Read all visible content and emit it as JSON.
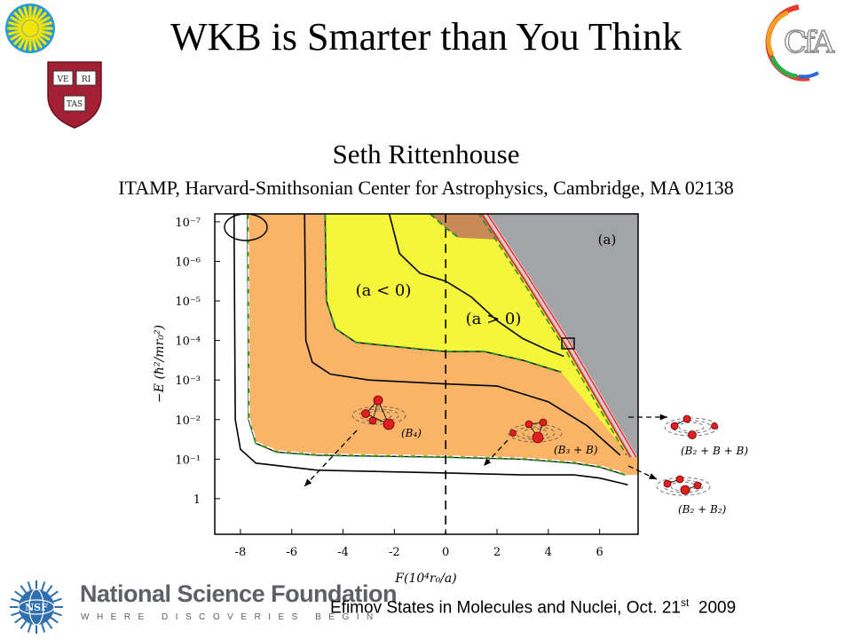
{
  "slide": {
    "title": "WKB is Smarter than You Think",
    "author": "Seth Rittenhouse",
    "affiliation": "ITAMP, Harvard-Smithsonian Center for Astrophysics, Cambridge, MA 02138",
    "footer_main": "Efimov States in Molecules and Nuclei, Oct. 21",
    "footer_sup": "st",
    "footer_year": "2009",
    "nsf_name": "National Science Foundation",
    "nsf_tagline": "WHERE DISCOVERIES BEGIN",
    "logos": {
      "sun_logo": "sun-icon",
      "harvard_shield": "Harvard shield",
      "shield_text": [
        "VE",
        "RI",
        "TAS"
      ],
      "cfa_text": "CfA",
      "nsf_badge": "NSF"
    }
  },
  "chart_data": {
    "type": "area",
    "panel_label": "(a)",
    "xlabel": "F(10⁴r₀/a)",
    "ylabel": "−E (ħ²/mr₀²)",
    "x_ticks": [
      -8,
      -6,
      -4,
      -2,
      0,
      2,
      4,
      6
    ],
    "y_ticks": [
      "10⁻⁷",
      "10⁻⁶",
      "10⁻⁵",
      "10⁻⁴",
      "10⁻³",
      "10⁻²",
      "10⁻¹",
      "1"
    ],
    "xlim": [
      -9,
      7.5
    ],
    "ylim_log10": [
      -7.2,
      0.9
    ],
    "y_axis": "log, inverted (1 at bottom, 10^-7 at top)",
    "x_axis_divider": "dashed vertical line at x = 0",
    "region_labels": [
      "(a < 0)",
      "(a > 0)"
    ],
    "colors": {
      "orange": "#f9b468",
      "yellow": "#f5f53c",
      "brown": "#c98a5a",
      "gray": "#a3a4a8",
      "red": "#e02020",
      "green_dashed": "#2c8c2c"
    },
    "curves": [
      {
        "name": "outer",
        "points": [
          [
            -8.25,
            -7.2
          ],
          [
            -8.2,
            -2
          ],
          [
            -8.0,
            -1.25
          ],
          [
            -7.4,
            -0.9
          ],
          [
            -5,
            -0.72
          ],
          [
            0,
            -0.65
          ],
          [
            3,
            -0.6
          ],
          [
            5,
            -0.6
          ],
          [
            6,
            -0.52
          ],
          [
            6.8,
            -0.4
          ],
          [
            7.1,
            -0.35
          ]
        ]
      },
      {
        "name": "orange_edge",
        "points": [
          [
            -7.72,
            -7.2
          ],
          [
            -7.68,
            -2
          ],
          [
            -7.4,
            -1.4
          ],
          [
            -6.6,
            -1.18
          ],
          [
            -5,
            -1.1
          ],
          [
            0,
            -1.05
          ],
          [
            3,
            -1.0
          ],
          [
            5,
            -0.9
          ],
          [
            6,
            -0.8
          ],
          [
            7.0,
            -0.6
          ]
        ]
      },
      {
        "name": "black_4",
        "points": [
          [
            -5.5,
            -7.2
          ],
          [
            -5.45,
            -4
          ],
          [
            -5.2,
            -3.45
          ],
          [
            -4.5,
            -3.15
          ],
          [
            -3,
            -3.0
          ],
          [
            0,
            -2.9
          ],
          [
            2,
            -2.85
          ],
          [
            4,
            -2.45
          ],
          [
            5.5,
            -1.85
          ],
          [
            6.8,
            -1.1
          ]
        ]
      },
      {
        "name": "yellow_boundary",
        "points": [
          [
            -4.7,
            -7.2
          ],
          [
            -4.65,
            -5
          ],
          [
            -4.3,
            -4.3
          ],
          [
            -3.5,
            -3.95
          ],
          [
            -1,
            -3.78
          ],
          [
            0,
            -3.72
          ],
          [
            1.5,
            -3.72
          ],
          [
            3,
            -3.5
          ],
          [
            4.5,
            -3.2
          ]
        ]
      },
      {
        "name": "black_2",
        "points": [
          [
            -2.2,
            -7.2
          ],
          [
            -1.8,
            -6.2
          ],
          [
            -1.0,
            -5.7
          ],
          [
            0,
            -5.5
          ],
          [
            1,
            -5.1
          ],
          [
            2,
            -4.5
          ],
          [
            3,
            -4.05
          ],
          [
            4,
            -3.75
          ],
          [
            4.6,
            -3.6
          ]
        ]
      },
      {
        "name": "brown_boundary",
        "points": [
          [
            -0.6,
            -7.2
          ],
          [
            0,
            -6.85
          ],
          [
            0.5,
            -6.6
          ]
        ]
      },
      {
        "name": "threshold",
        "points": [
          [
            1.4,
            -7.2
          ],
          [
            3,
            -5.6
          ],
          [
            4.6,
            -3.95
          ],
          [
            7.2,
            -1.05
          ]
        ]
      }
    ],
    "annotations": [
      "(B₄)",
      "(B₃ + B)",
      "(B₂ + B + B)",
      "(B₂ + B₂)"
    ]
  }
}
